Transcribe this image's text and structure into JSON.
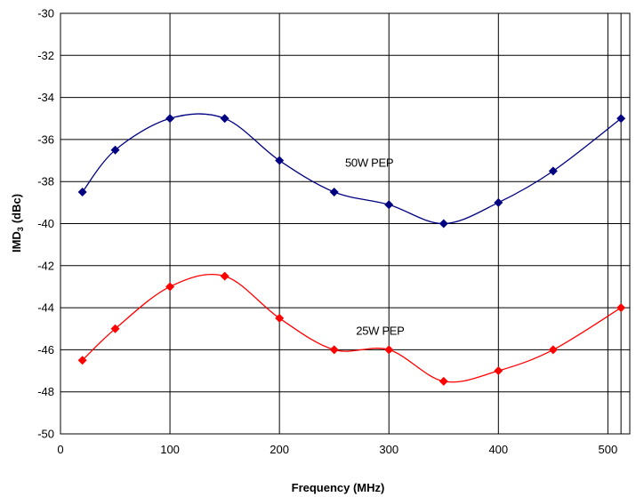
{
  "chart_data": {
    "type": "line",
    "title": "",
    "xlabel": "Frequency (MHz)",
    "ylabel": "IMD",
    "ylabel_sub": "3",
    "ylabel_unit": "(dBc)",
    "xlim": [
      0,
      520
    ],
    "ylim": [
      -50,
      -30
    ],
    "x_ticks": [
      0,
      100,
      200,
      300,
      400,
      500
    ],
    "y_ticks": [
      -50,
      -48,
      -46,
      -44,
      -42,
      -40,
      -38,
      -36,
      -34,
      -32,
      -30
    ],
    "x_gridlines": [
      0,
      100,
      200,
      300,
      400,
      500,
      512,
      520
    ],
    "grid": true,
    "smooth": true,
    "series": [
      {
        "name": "50W PEP",
        "color": "#000080",
        "marker": "diamond",
        "x": [
          20,
          50,
          100,
          150,
          200,
          250,
          300,
          350,
          400,
          450,
          512
        ],
        "y": [
          -38.5,
          -36.5,
          -35.0,
          -35.0,
          -37.0,
          -38.5,
          -39.1,
          -40.0,
          -39.0,
          -37.5,
          -35.0
        ]
      },
      {
        "name": "25W PEP",
        "color": "#ff0000",
        "marker": "diamond",
        "x": [
          20,
          50,
          100,
          150,
          200,
          250,
          300,
          350,
          400,
          450,
          512
        ],
        "y": [
          -46.5,
          -45.0,
          -43.0,
          -42.5,
          -44.5,
          -46.0,
          -46.0,
          -47.5,
          -47.0,
          -46.0,
          -44.0
        ]
      }
    ],
    "annotations": [
      {
        "text": "50W PEP",
        "x": 260,
        "y": -37.1
      },
      {
        "text": "25W PEP",
        "x": 270,
        "y": -45.1
      }
    ]
  }
}
